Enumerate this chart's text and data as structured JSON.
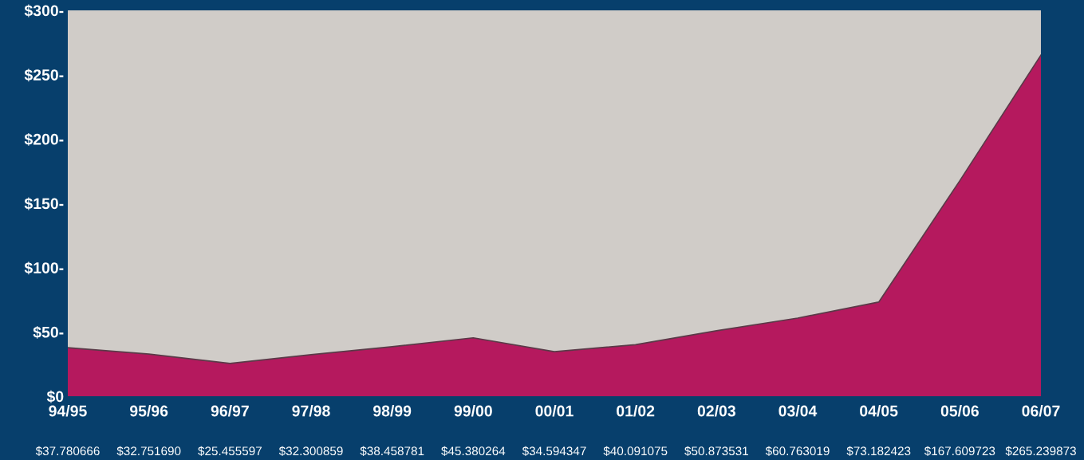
{
  "chart_data": {
    "type": "area",
    "categories": [
      "94/95",
      "95/96",
      "96/97",
      "97/98",
      "98/99",
      "99/00",
      "00/01",
      "01/02",
      "02/03",
      "03/04",
      "04/05",
      "05/06",
      "06/07"
    ],
    "values": [
      37.780666,
      32.75169,
      25.455597,
      32.300859,
      38.458781,
      45.380264,
      34.594347,
      40.091075,
      50.873531,
      60.763019,
      73.182423,
      167.609723,
      265.239873
    ],
    "value_labels": [
      "$37.780666",
      "$32.751690",
      "$25.455597",
      "$32.300859",
      "$38.458781",
      "$45.380264",
      "$34.594347",
      "$40.091075",
      "$50.873531",
      "$60.763019",
      "$73.182423",
      "$167.609723",
      "$265.239873"
    ],
    "color": "#b5195e",
    "ylim": [
      0,
      300
    ],
    "yticks": [
      {
        "value": 0,
        "label": "$0"
      },
      {
        "value": 50,
        "label": "$50-"
      },
      {
        "value": 100,
        "label": "$100-"
      },
      {
        "value": 150,
        "label": "$150-"
      },
      {
        "value": 200,
        "label": "$200-"
      },
      {
        "value": 250,
        "label": "$250-"
      },
      {
        "value": 300,
        "label": "$300-"
      }
    ],
    "grid": false,
    "legend": false
  }
}
